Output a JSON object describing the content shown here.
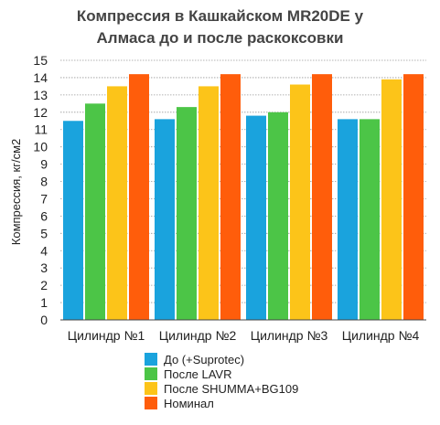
{
  "chart_data": {
    "type": "bar",
    "title_lines": [
      "Компрессия в Кашкайском MR20DE у",
      "Алмаса до и после раскоксовки"
    ],
    "ylabel": "Компрессия, кг/см2",
    "xlabel": "",
    "ylim": [
      0,
      15
    ],
    "yticks": [
      0,
      1,
      2,
      3,
      4,
      5,
      6,
      7,
      8,
      9,
      10,
      11,
      12,
      13,
      14,
      15
    ],
    "grid": true,
    "legend_position": "bottom",
    "categories": [
      "Цилиндр №1",
      "Цилиндр №2",
      "Цилиндр №3",
      "Цилиндр №4"
    ],
    "series": [
      {
        "name": "До (+Suprotec)",
        "color": "#1aa3dd",
        "values": [
          11.5,
          11.6,
          11.8,
          11.6
        ]
      },
      {
        "name": "После LAVR",
        "color": "#4cc547",
        "values": [
          12.5,
          12.3,
          12.0,
          11.6
        ]
      },
      {
        "name": "После SHUMMA+BG109",
        "color": "#fcc419",
        "values": [
          13.5,
          13.5,
          13.6,
          13.9
        ]
      },
      {
        "name": "Номинал",
        "color": "#ff5d0b",
        "values": [
          14.2,
          14.2,
          14.2,
          14.2
        ]
      }
    ]
  }
}
